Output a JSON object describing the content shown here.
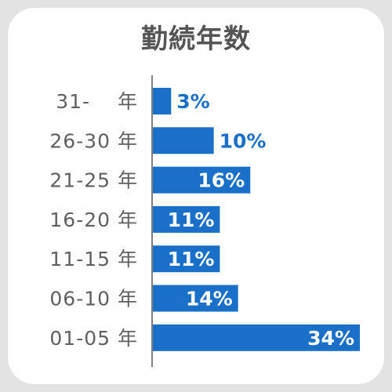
{
  "chart_data": {
    "type": "bar",
    "orientation": "horizontal",
    "title": "勤続年数",
    "categories": [
      "31-　 年",
      "26-30 年",
      "21-25 年",
      "16-20 年",
      "11-15 年",
      "06-10 年",
      "01-05 年"
    ],
    "values": [
      3,
      10,
      16,
      11,
      11,
      14,
      34
    ],
    "value_labels": [
      "3%",
      "10%",
      "16%",
      "11%",
      "11%",
      "14%",
      "34%"
    ],
    "xlim": [
      0,
      34
    ],
    "grid": false,
    "legend": "none",
    "colors": {
      "bar": "#1a6fc9",
      "label_outside": "#1a6fc9",
      "label_inside": "#ffffff",
      "axis": "#808080",
      "card": "#ffffff",
      "background": "#e3e3e3"
    }
  }
}
